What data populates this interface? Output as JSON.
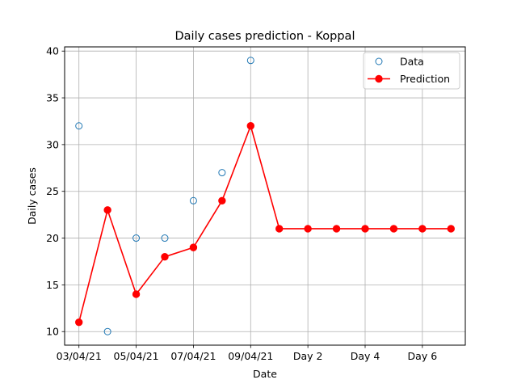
{
  "chart_data": {
    "type": "line",
    "title": "Daily cases prediction - Koppal",
    "xlabel": "Date",
    "ylabel": "Daily cases",
    "xlim": [
      -0.5,
      13.5
    ],
    "ylim": [
      8.55,
      40.45
    ],
    "grid": true,
    "legend_position": "top-right",
    "xticks": [
      {
        "x": 0,
        "label": "03/04/21"
      },
      {
        "x": 2,
        "label": "05/04/21"
      },
      {
        "x": 4,
        "label": "07/04/21"
      },
      {
        "x": 6,
        "label": "09/04/21"
      },
      {
        "x": 8,
        "label": "Day 2"
      },
      {
        "x": 10,
        "label": "Day 4"
      },
      {
        "x": 12,
        "label": "Day 6"
      }
    ],
    "yticks": [
      10,
      15,
      20,
      25,
      30,
      35,
      40
    ],
    "series": [
      {
        "name": "Data",
        "style": "open-circle",
        "color": "#1f77b4",
        "x": [
          0,
          1,
          2,
          3,
          4,
          5,
          6
        ],
        "y": [
          32,
          10,
          20,
          20,
          24,
          27,
          39
        ]
      },
      {
        "name": "Prediction",
        "style": "line-marker",
        "color": "#ff0000",
        "x": [
          0,
          1,
          2,
          3,
          4,
          5,
          6,
          7,
          8,
          9,
          10,
          11,
          12,
          13
        ],
        "y": [
          11,
          23,
          14,
          18,
          19,
          24,
          32,
          21,
          21,
          21,
          21,
          21,
          21,
          21
        ]
      }
    ]
  }
}
